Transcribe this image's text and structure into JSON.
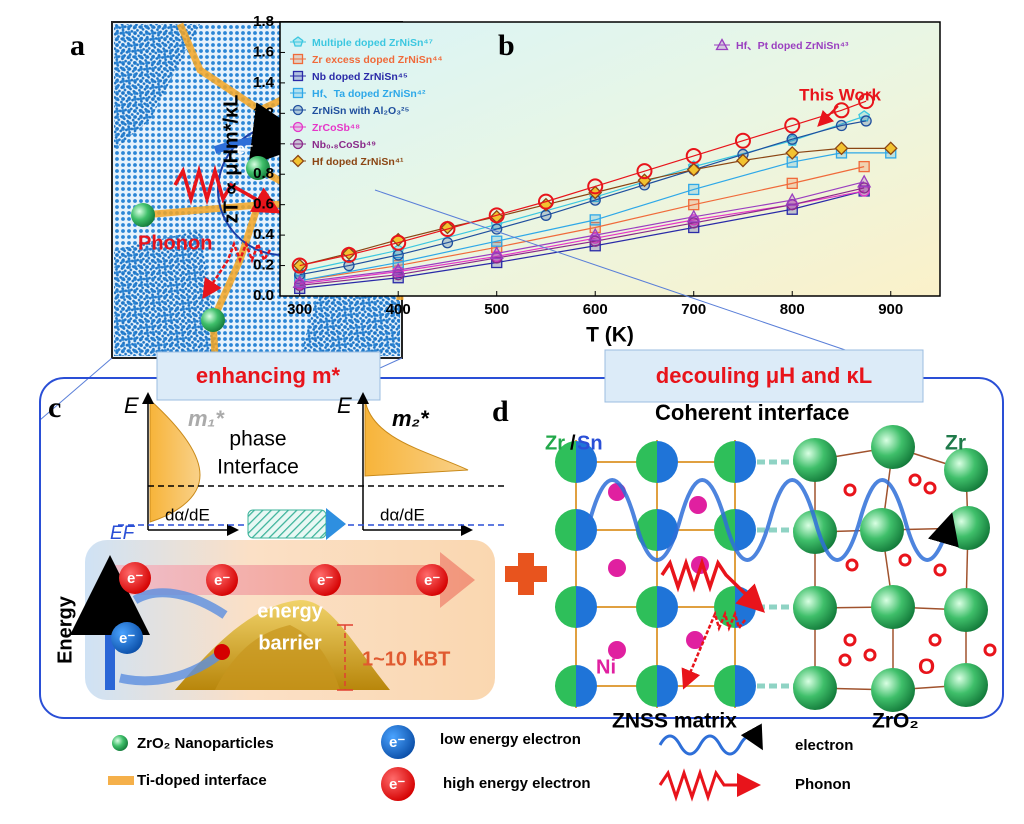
{
  "panel_labels": [
    "a",
    "b",
    "c",
    "d"
  ],
  "panel_a": {
    "electron": "e⁻",
    "phonon": "Phonon"
  },
  "chart_data": {
    "type": "line",
    "xlabel": "T (K)",
    "ylabel": "zT ∝ μHm*/κL",
    "annotation": "This Work",
    "xlim": [
      280,
      950
    ],
    "xticks": [
      300,
      400,
      500,
      600,
      700,
      800,
      900
    ],
    "ylim": [
      0,
      1.8
    ],
    "yticks": [
      {
        "value": 0,
        "label": "0.0"
      },
      0.2,
      0.4,
      0.6,
      0.8,
      {
        "value": 1,
        "label": "1.0"
      },
      1.2,
      1.4,
      1.6,
      1.8
    ],
    "series": [
      {
        "name": "Multiple doped ZrNiSn⁴⁷",
        "color": "#3cc7e0",
        "marker": "pentagon",
        "x": [
          300,
          400,
          500,
          600,
          700,
          800,
          873
        ],
        "values": [
          0.16,
          0.3,
          0.47,
          0.65,
          0.85,
          1.02,
          1.18
        ]
      },
      {
        "name": "Zr excess doped ZrNiSn⁴⁴",
        "color": "#f06a3a",
        "marker": "square",
        "x": [
          300,
          400,
          500,
          600,
          700,
          800,
          873
        ],
        "values": [
          0.1,
          0.2,
          0.32,
          0.45,
          0.6,
          0.74,
          0.85
        ]
      },
      {
        "name": "Nb doped ZrNiSn⁴⁵",
        "color": "#2a2aa8",
        "marker": "square",
        "x": [
          300,
          400,
          500,
          600,
          700,
          800,
          873
        ],
        "values": [
          0.05,
          0.12,
          0.22,
          0.33,
          0.45,
          0.57,
          0.69
        ]
      },
      {
        "name": "Hf、Ta doped ZrNiSn⁴²",
        "color": "#2ea8e8",
        "marker": "square",
        "x": [
          300,
          400,
          500,
          600,
          700,
          800,
          850,
          900
        ],
        "values": [
          0.1,
          0.22,
          0.36,
          0.5,
          0.7,
          0.88,
          0.94,
          0.94
        ]
      },
      {
        "name": "ZrNiSn with Al₂O₃²⁵",
        "color": "#1f4f9e",
        "marker": "circle",
        "x": [
          300,
          350,
          400,
          450,
          500,
          550,
          600,
          650,
          700,
          750,
          800,
          850,
          875
        ],
        "values": [
          0.14,
          0.2,
          0.27,
          0.35,
          0.44,
          0.53,
          0.63,
          0.73,
          0.83,
          0.93,
          1.03,
          1.12,
          1.15
        ]
      },
      {
        "name": "ZrCoSb⁴⁸",
        "color": "#e536c8",
        "marker": "circle",
        "x": [
          300,
          400,
          500,
          600,
          700,
          800,
          873
        ],
        "values": [
          0.08,
          0.16,
          0.26,
          0.38,
          0.5,
          0.6,
          0.69
        ]
      },
      {
        "name": "Nb₀.₈CoSb⁴⁹",
        "color": "#8a2a8a",
        "marker": "circle",
        "x": [
          300,
          400,
          500,
          600,
          700,
          800,
          873
        ],
        "values": [
          0.07,
          0.14,
          0.25,
          0.36,
          0.48,
          0.6,
          0.71
        ]
      },
      {
        "name": "Hf doped ZrNiSn⁴¹",
        "color": "#8b4513",
        "marker": "diamond",
        "x": [
          300,
          350,
          400,
          450,
          500,
          550,
          600,
          650,
          700,
          750,
          800,
          850,
          900
        ],
        "values": [
          0.2,
          0.28,
          0.37,
          0.45,
          0.52,
          0.6,
          0.68,
          0.76,
          0.83,
          0.89,
          0.94,
          0.97,
          0.97
        ]
      },
      {
        "name": "Hf、Pt doped ZrNiSn⁴³",
        "color": "#9a3fc0",
        "marker": "triangle",
        "x": [
          300,
          400,
          500,
          600,
          700,
          800,
          873
        ],
        "values": [
          0.09,
          0.17,
          0.28,
          0.4,
          0.52,
          0.63,
          0.75
        ]
      },
      {
        "name": "This Work",
        "color": "#e8141b",
        "marker": "circle",
        "x": [
          300,
          350,
          400,
          450,
          500,
          550,
          600,
          650,
          700,
          750,
          800,
          850,
          875
        ],
        "values": [
          0.2,
          0.27,
          0.35,
          0.44,
          0.53,
          0.62,
          0.72,
          0.82,
          0.92,
          1.02,
          1.12,
          1.22,
          1.28
        ]
      }
    ]
  },
  "banners": [
    "enhancing m*",
    "decouling μH and κL"
  ],
  "panel_c": {
    "e_axis": [
      "E",
      "E"
    ],
    "m1": "m₁*",
    "m2": "m₂*",
    "interface": [
      "phase",
      "Interface"
    ],
    "dos_axis": [
      "dα/dE",
      "dα/dE"
    ],
    "fermi": "EF",
    "high_electrons": [
      "e⁻",
      "e⁻",
      "e⁻",
      "e⁻"
    ],
    "low_electron": "e⁻",
    "energy_axis": "Energy",
    "barrier": [
      "energy",
      "barrier"
    ],
    "barrier_height": "1~10 kBT"
  },
  "panel_d": {
    "zr_sn": [
      "Zr",
      "/",
      "Sn"
    ],
    "coherent": "Coherent interface",
    "zr": "Zr",
    "ni": "Ni",
    "o": "O",
    "matrix": "ZNSS matrix",
    "zro2": "ZrO₂"
  },
  "legend": {
    "nanoparticles": "ZrO₂ Nanoparticles",
    "interface": "Ti-doped interface",
    "low_symbol": "e⁻",
    "low": "low energy electron",
    "high_symbol": "e⁻",
    "high": "high energy electron",
    "electron": "electron",
    "phonon": "Phonon"
  }
}
